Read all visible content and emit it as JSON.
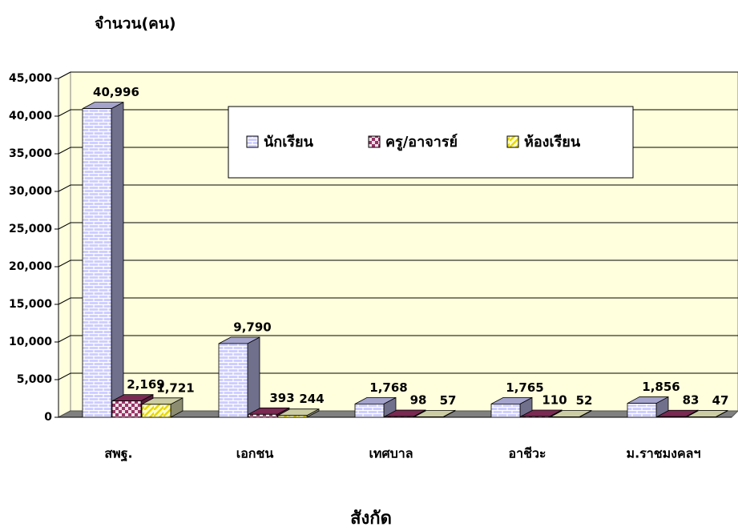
{
  "chart_data": {
    "type": "bar3d",
    "y_axis_label": "จำนวน(คน)",
    "x_axis_label": "สังกัด",
    "categories": [
      "สพฐ.",
      "เอกชน",
      "เทศบาล",
      "อาชีวะ",
      "ม.ราชมงคลฯ"
    ],
    "series": [
      {
        "name": "นักเรียน",
        "color": "#ccccff",
        "values": [
          40996,
          9790,
          1768,
          1765,
          1856
        ],
        "value_labels": [
          "40,996",
          "9,790",
          "1,768",
          "1,765",
          "1,856"
        ]
      },
      {
        "name": "ครู/อาจารย์",
        "color": "#993366",
        "values": [
          2169,
          393,
          98,
          110,
          83
        ],
        "value_labels": [
          "2,169",
          "393",
          "98",
          "110",
          "83"
        ]
      },
      {
        "name": "ห้องเรียน",
        "color": "#ffffcc",
        "values": [
          1721,
          244,
          57,
          52,
          47
        ],
        "value_labels": [
          "1,721",
          "244",
          "57",
          "52",
          "47"
        ]
      }
    ],
    "ylim": [
      0,
      45000
    ],
    "yticks": [
      0,
      {
        "value": 5000,
        "label": "5,000"
      },
      {
        "value": 10000,
        "label": "10,000"
      },
      {
        "value": 15000,
        "label": "15,000"
      },
      {
        "value": 20000,
        "label": "20,000"
      },
      {
        "value": 25000,
        "label": "25,000"
      },
      {
        "value": 30000,
        "label": "30,000"
      },
      {
        "value": 35000,
        "label": "35,000"
      },
      {
        "value": 40000,
        "label": "40,000"
      },
      {
        "value": 45000,
        "label": "45,000"
      }
    ],
    "grid": true
  }
}
